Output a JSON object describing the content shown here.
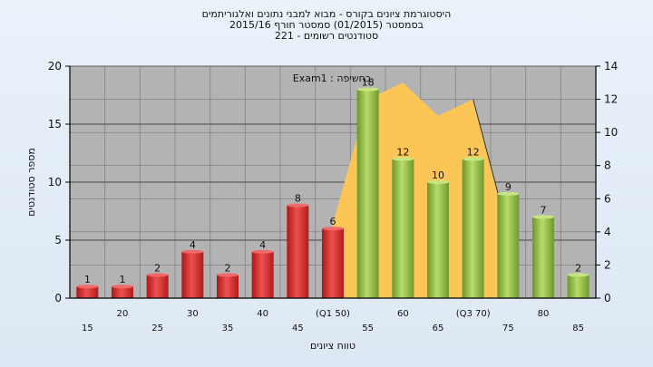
{
  "title_lines": [
    "היסטוגרמת ציונים בקורס - מבוא למבני נתונים ואלגוריתמים",
    "בסמסטר  (01/2015)  סמסטר חורף 2015/16",
    "סטודנטים רשומים - 221"
  ],
  "chart_data": {
    "type": "bar",
    "ylabel": "מספר סטודנטים",
    "xlabel": "טווח ציונים",
    "ylim": [
      0,
      20
    ],
    "y2lim": [
      0,
      14
    ],
    "y_ticks": [
      0,
      5,
      10,
      15,
      20
    ],
    "y2_ticks": [
      0,
      2,
      4,
      6,
      8,
      10,
      12,
      14
    ],
    "exam_label": "Exam1 : בחשיפה",
    "categories": [
      "15",
      "20",
      "25",
      "30",
      "35",
      "40",
      "45",
      "(Q1 50)",
      "55",
      "60",
      "65",
      "(Q3 70)",
      "75",
      "80",
      "85"
    ],
    "values": [
      1,
      1,
      2,
      4,
      2,
      4,
      8,
      6,
      18,
      12,
      10,
      12,
      9,
      7,
      2
    ],
    "value_labels": [
      "1",
      "1",
      "2",
      "4",
      "2",
      "4",
      "8",
      "6",
      "18",
      "12",
      "10",
      "12",
      "9",
      "7",
      "2"
    ],
    "bar_colors": [
      "red",
      "red",
      "red",
      "red",
      "red",
      "red",
      "red",
      "red",
      "green",
      "green",
      "green",
      "green",
      "green",
      "green",
      "green"
    ],
    "area_series": {
      "x_index": [
        7,
        8,
        9,
        10,
        11,
        12
      ],
      "values": [
        4.5,
        12,
        13,
        11,
        12,
        4
      ]
    },
    "colors": {
      "plot_bg": "#b3b3b3",
      "red_bar": "#e03030",
      "green_bar": "#96c045",
      "area": "#fcc656",
      "axis": "#000000"
    },
    "grid": true
  }
}
